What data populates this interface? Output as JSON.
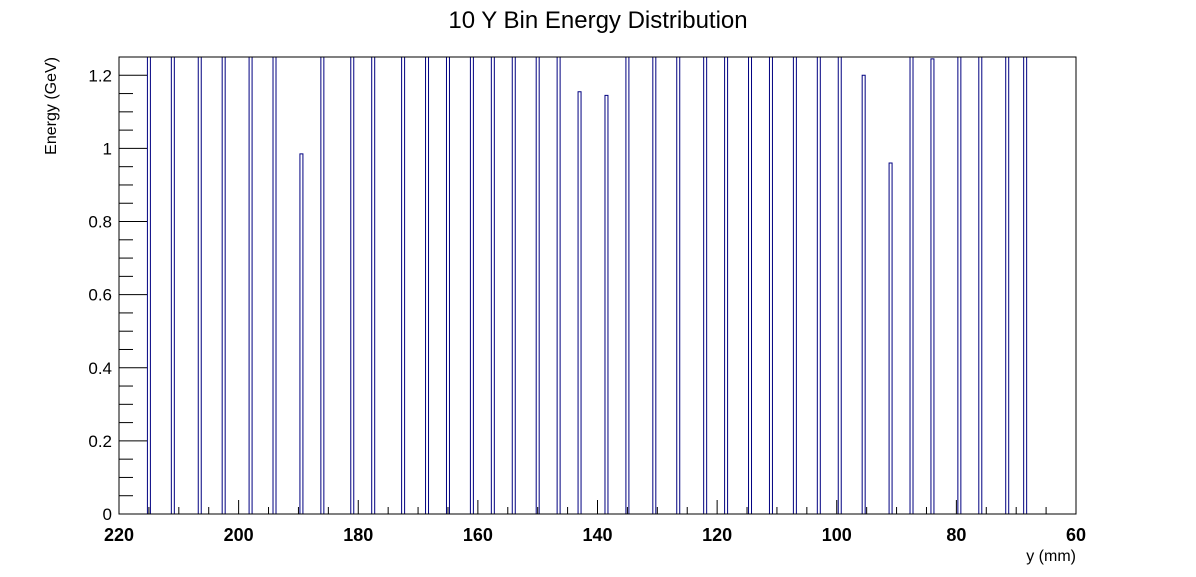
{
  "chart_data": {
    "type": "bar",
    "title": "10 Y Bin Energy Distribution",
    "xlabel": "y (mm)",
    "ylabel": "Energy (GeV)",
    "xlim": [
      220,
      60
    ],
    "ylim": [
      0,
      1.25
    ],
    "x_ticks": [
      "220",
      "200",
      "180",
      "160",
      "140",
      "120",
      "100",
      "80",
      "60"
    ],
    "y_ticks": [
      "0",
      "0.2",
      "0.4",
      "0.6",
      "0.8",
      "1",
      "1.2"
    ],
    "grid": false,
    "legend": "none",
    "bar_color": "#000080",
    "bin_width_mm": 0.5,
    "bins": [
      {
        "x": 215.0,
        "value": 1.25
      },
      {
        "x": 211.0,
        "value": 1.25
      },
      {
        "x": 206.5,
        "value": 1.25
      },
      {
        "x": 202.5,
        "value": 1.25
      },
      {
        "x": 198.0,
        "value": 1.25
      },
      {
        "x": 194.0,
        "value": 1.25
      },
      {
        "x": 189.5,
        "value": 0.985
      },
      {
        "x": 186.0,
        "value": 1.25
      },
      {
        "x": 181.0,
        "value": 1.25
      },
      {
        "x": 177.5,
        "value": 1.25
      },
      {
        "x": 172.5,
        "value": 1.25
      },
      {
        "x": 168.5,
        "value": 1.25
      },
      {
        "x": 165.0,
        "value": 1.25
      },
      {
        "x": 161.0,
        "value": 1.25
      },
      {
        "x": 157.5,
        "value": 1.25
      },
      {
        "x": 154.0,
        "value": 1.25
      },
      {
        "x": 150.0,
        "value": 1.25
      },
      {
        "x": 146.5,
        "value": 1.25
      },
      {
        "x": 143.0,
        "value": 1.155
      },
      {
        "x": 138.5,
        "value": 1.145
      },
      {
        "x": 135.0,
        "value": 1.25
      },
      {
        "x": 130.5,
        "value": 1.25
      },
      {
        "x": 126.5,
        "value": 1.25
      },
      {
        "x": 122.0,
        "value": 1.25
      },
      {
        "x": 118.5,
        "value": 1.25
      },
      {
        "x": 114.5,
        "value": 1.25
      },
      {
        "x": 111.0,
        "value": 1.25
      },
      {
        "x": 107.0,
        "value": 1.25
      },
      {
        "x": 103.0,
        "value": 1.25
      },
      {
        "x": 99.5,
        "value": 1.25
      },
      {
        "x": 95.5,
        "value": 1.2
      },
      {
        "x": 91.0,
        "value": 0.96
      },
      {
        "x": 87.5,
        "value": 1.25
      },
      {
        "x": 84.0,
        "value": 1.245
      },
      {
        "x": 79.5,
        "value": 1.25
      },
      {
        "x": 76.0,
        "value": 1.25
      },
      {
        "x": 71.5,
        "value": 1.25
      },
      {
        "x": 68.5,
        "value": 1.25
      }
    ]
  }
}
